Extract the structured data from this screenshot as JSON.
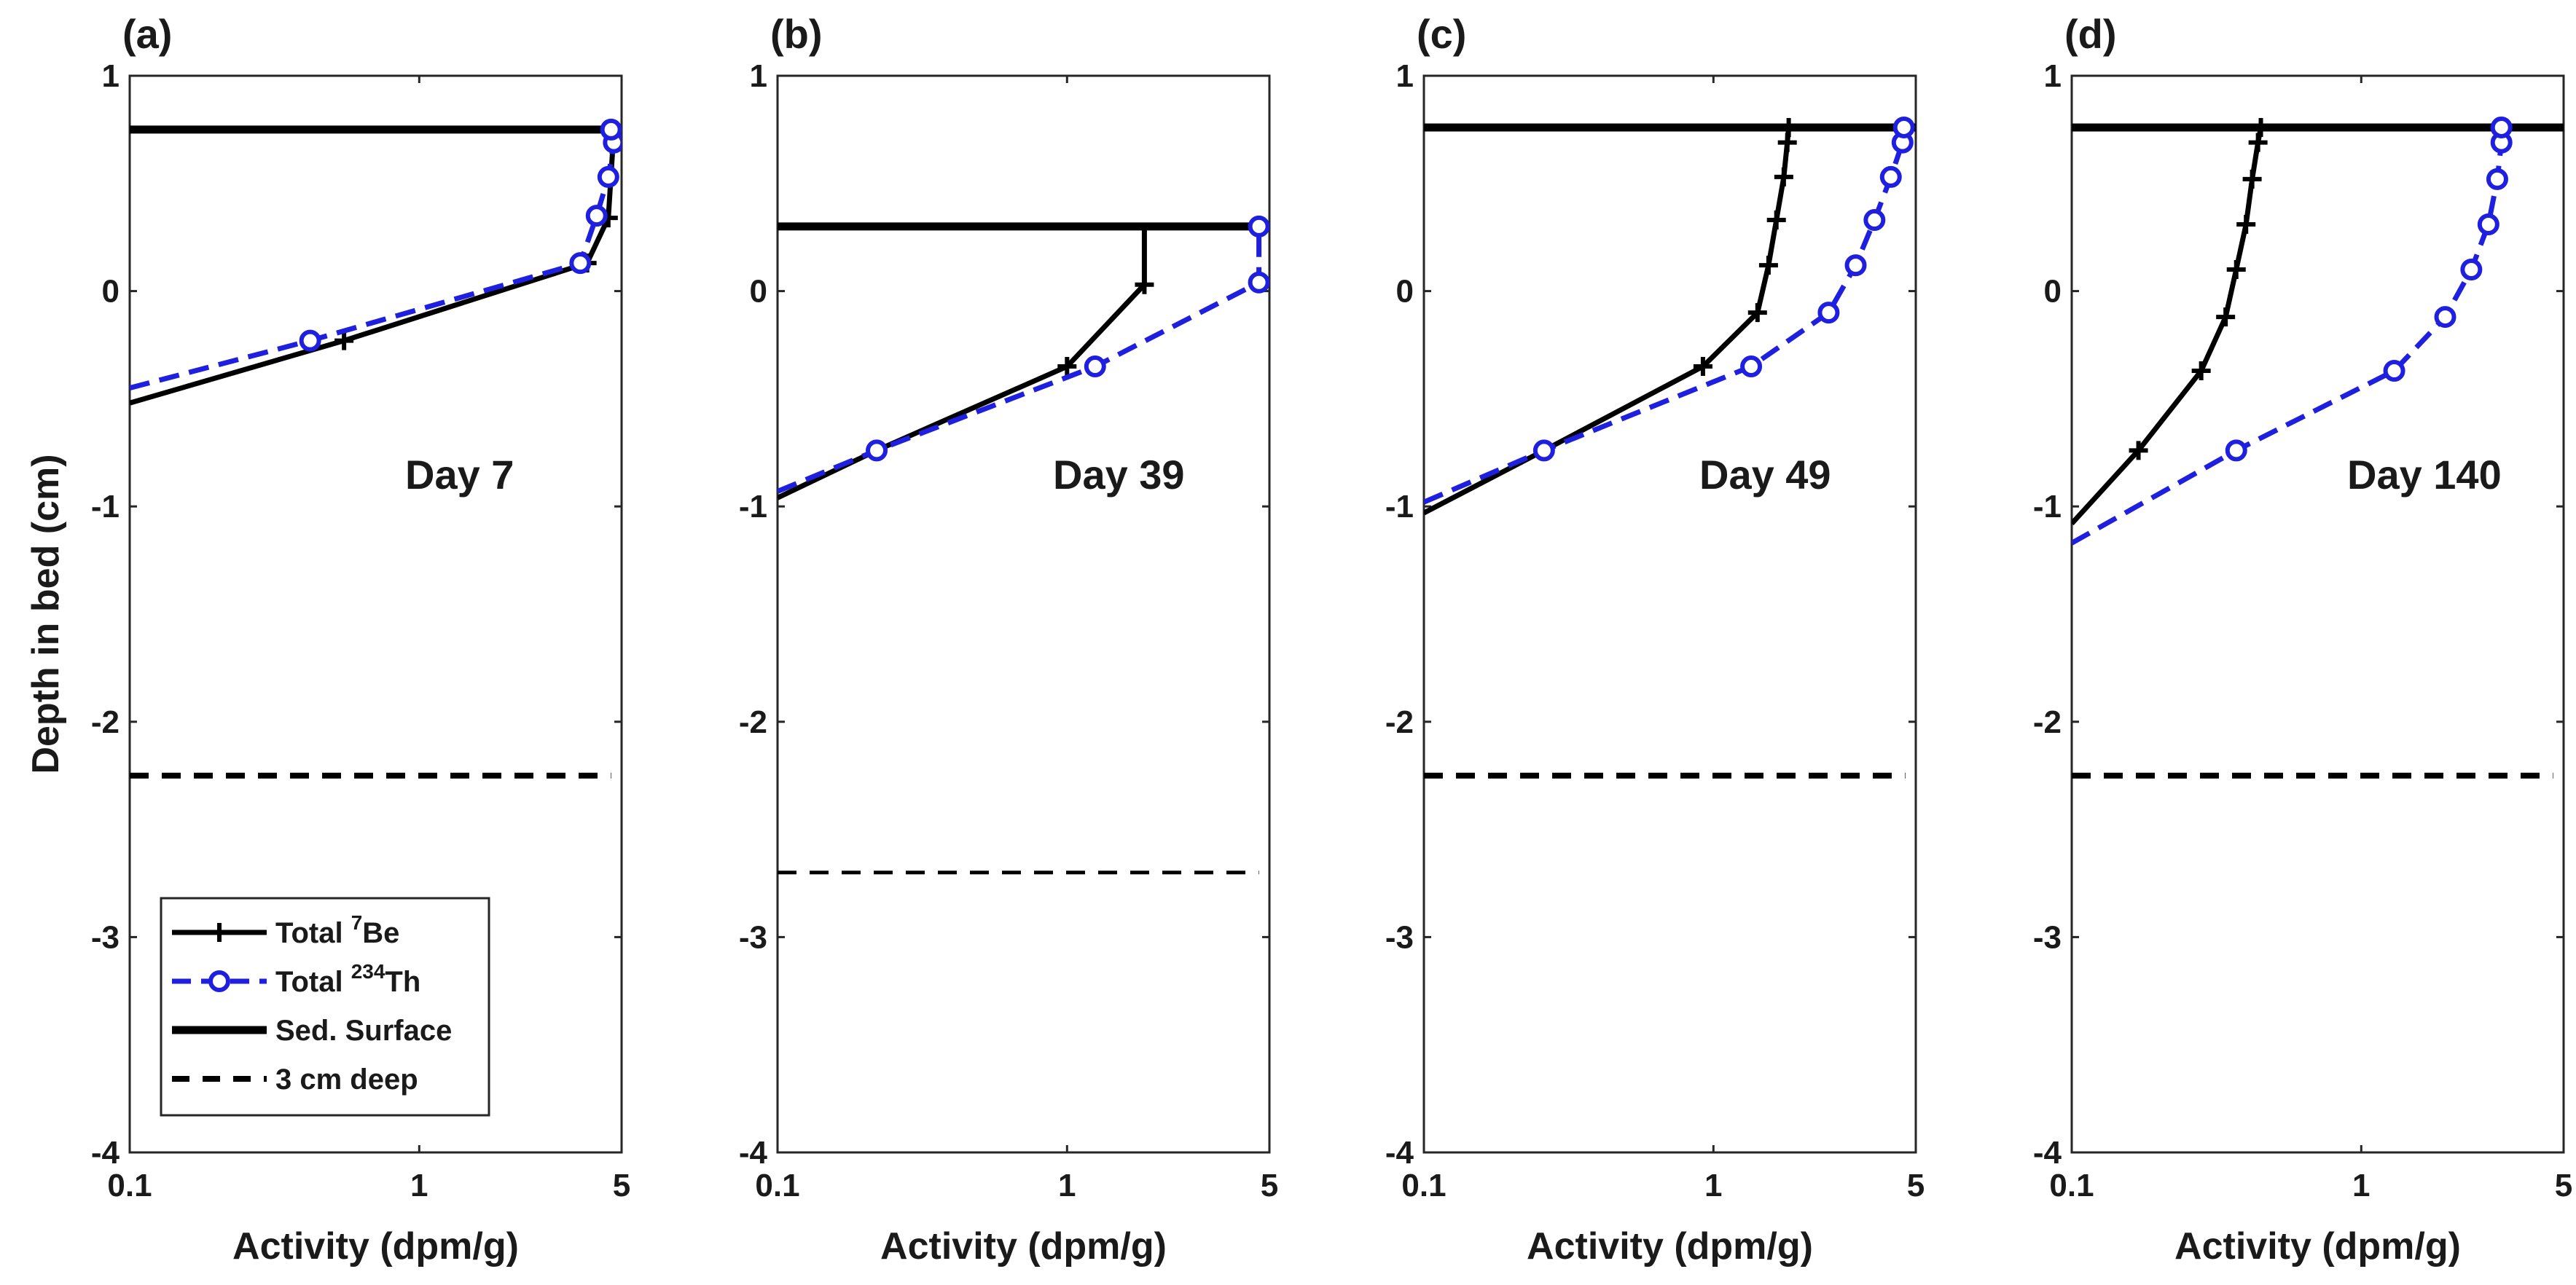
{
  "chart_data": {
    "type": "line",
    "figure": {
      "ylabel": "Depth in bed (cm)",
      "xlabel": "Activity (dpm/g)",
      "xscale": "log",
      "xlim": [
        0.1,
        5
      ],
      "ylim": [
        -4,
        1
      ],
      "x_ticks": [
        {
          "value": 0.1,
          "label": "0.1"
        },
        {
          "value": 1,
          "label": "1"
        },
        {
          "value": 5,
          "label": "5"
        }
      ],
      "y_ticks": [
        {
          "value": 1,
          "label": "1"
        },
        {
          "value": 0,
          "label": "0"
        },
        {
          "value": -1,
          "label": "-1"
        },
        {
          "value": -2,
          "label": "-2"
        },
        {
          "value": -3,
          "label": "-3"
        },
        {
          "value": -4,
          "label": "-4"
        }
      ],
      "colors": {
        "be7": "#000000",
        "th234": "#1f1fe0",
        "surface": "#000000",
        "deep": "#000000"
      }
    },
    "legend": {
      "panel": "a",
      "placement": "bottom-left",
      "entries": [
        {
          "series": "be7",
          "prefix": "Total ",
          "sup": "7",
          "suffix": "Be"
        },
        {
          "series": "th234",
          "prefix": "Total ",
          "sup": "234",
          "suffix": "Th"
        },
        {
          "series": "surface",
          "prefix": "Sed. Surface",
          "sup": "",
          "suffix": ""
        },
        {
          "series": "deep",
          "prefix": "3 cm deep",
          "sup": "",
          "suffix": ""
        }
      ]
    },
    "panels": [
      {
        "id": "a",
        "label": "(a)",
        "annotation": "Day 7",
        "surface_depth": 0.75,
        "surface_extent": [
          0.1,
          5
        ],
        "deep_depth": -2.25,
        "deep_extent": [
          0.1,
          4.6
        ],
        "series": [
          {
            "name": "Total 7Be",
            "key": "be7",
            "x": [
              0.1,
              0.55,
              3.8,
              4.5,
              4.7,
              4.75
            ],
            "y": [
              -0.52,
              -0.23,
              0.13,
              0.34,
              0.74,
              0.76
            ],
            "markers": [
              1,
              2,
              3
            ]
          },
          {
            "name": "Total 234Th",
            "key": "th234",
            "x": [
              0.1,
              0.42,
              3.6,
              4.1,
              4.5,
              4.7,
              4.6
            ],
            "y": [
              -0.45,
              -0.23,
              0.13,
              0.35,
              0.53,
              0.69,
              0.75
            ],
            "markers": [
              1,
              2,
              3,
              4,
              5,
              6
            ]
          }
        ]
      },
      {
        "id": "b",
        "label": "(b)",
        "annotation": "Day 39",
        "surface_depth": 0.3,
        "surface_extent": [
          0.1,
          5
        ],
        "deep_depth": -2.7,
        "deep_extent": [
          0.1,
          4.6
        ],
        "deep_thin": true,
        "series": [
          {
            "name": "Total 7Be",
            "key": "be7",
            "x": [
              0.1,
              0.22,
              1.0,
              1.85,
              1.85
            ],
            "y": [
              -0.96,
              -0.74,
              -0.35,
              0.03,
              0.3
            ],
            "markers": [
              1,
              2,
              3
            ]
          },
          {
            "name": "Total 234Th",
            "key": "th234",
            "x": [
              0.1,
              0.22,
              1.25,
              4.6,
              4.6
            ],
            "y": [
              -0.93,
              -0.74,
              -0.35,
              0.04,
              0.3
            ],
            "markers": [
              1,
              2,
              3,
              4
            ]
          }
        ]
      },
      {
        "id": "c",
        "label": "(c)",
        "annotation": "Day 49",
        "surface_depth": 0.76,
        "surface_extent": [
          0.1,
          5
        ],
        "deep_depth": -2.25,
        "deep_extent": [
          0.1,
          4.6
        ],
        "series": [
          {
            "name": "Total 7Be",
            "key": "be7",
            "x": [
              0.1,
              0.26,
              0.92,
              1.42,
              1.55,
              1.65,
              1.75,
              1.8,
              1.82
            ],
            "y": [
              -1.03,
              -0.74,
              -0.35,
              -0.1,
              0.12,
              0.33,
              0.53,
              0.69,
              0.76
            ],
            "markers": [
              1,
              2,
              3,
              4,
              5,
              6,
              7,
              8
            ]
          },
          {
            "name": "Total 234Th",
            "key": "th234",
            "x": [
              0.1,
              0.26,
              1.35,
              2.5,
              3.1,
              3.6,
              4.1,
              4.5,
              4.55
            ],
            "y": [
              -0.98,
              -0.74,
              -0.35,
              -0.1,
              0.12,
              0.33,
              0.53,
              0.69,
              0.76
            ],
            "markers": [
              1,
              2,
              3,
              4,
              5,
              6,
              7,
              8
            ]
          }
        ]
      },
      {
        "id": "d",
        "label": "(d)",
        "annotation": "Day 140",
        "surface_depth": 0.76,
        "surface_extent": [
          0.1,
          5
        ],
        "deep_depth": -2.25,
        "deep_extent": [
          0.1,
          4.6
        ],
        "series": [
          {
            "name": "Total 7Be",
            "key": "be7",
            "x": [
              0.1,
              0.17,
              0.28,
              0.34,
              0.37,
              0.4,
              0.42,
              0.44,
              0.45
            ],
            "y": [
              -1.08,
              -0.74,
              -0.37,
              -0.12,
              0.1,
              0.31,
              0.52,
              0.69,
              0.76
            ],
            "markers": [
              1,
              2,
              3,
              4,
              5,
              6,
              7,
              8
            ]
          },
          {
            "name": "Total 234Th",
            "key": "th234",
            "x": [
              0.1,
              0.37,
              1.3,
              1.95,
              2.4,
              2.75,
              2.95,
              3.05,
              3.05
            ],
            "y": [
              -1.17,
              -0.74,
              -0.37,
              -0.12,
              0.1,
              0.31,
              0.52,
              0.69,
              0.76
            ],
            "markers": [
              1,
              2,
              3,
              4,
              5,
              6,
              7,
              8
            ]
          }
        ]
      }
    ]
  }
}
